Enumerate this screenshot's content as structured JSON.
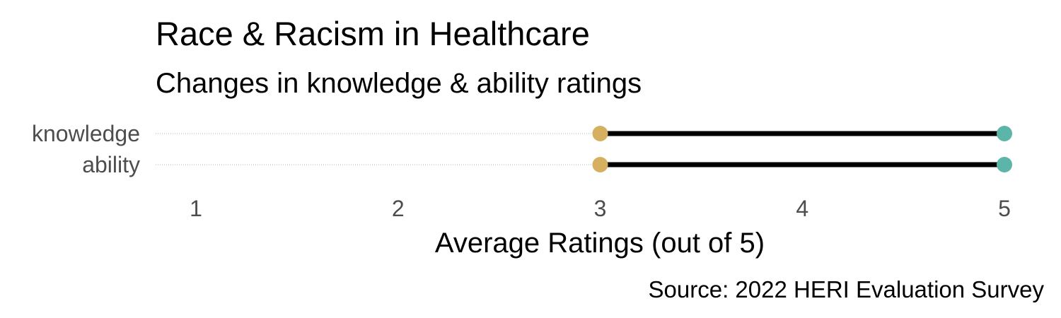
{
  "chart_data": {
    "type": "dumbbell",
    "title": "Race & Racism in Healthcare",
    "subtitle": "Changes in knowledge & ability ratings",
    "xlabel": "Average Ratings (out of 5)",
    "caption": "Source: 2022 HERI Evaluation Survey",
    "xlim": [
      1,
      5
    ],
    "xticks": [
      1,
      2,
      3,
      4,
      5
    ],
    "categories": [
      "knowledge",
      "ability"
    ],
    "points": [
      {
        "category": "knowledge",
        "start": 3,
        "end": 5
      },
      {
        "category": "ability",
        "start": 3,
        "end": 5
      }
    ],
    "grid": "dotted horizontal guides",
    "colors": {
      "start_point": "#d6b061",
      "end_point": "#5bb5a8",
      "segment": "#000000",
      "guide": "#b3b3b3"
    }
  }
}
